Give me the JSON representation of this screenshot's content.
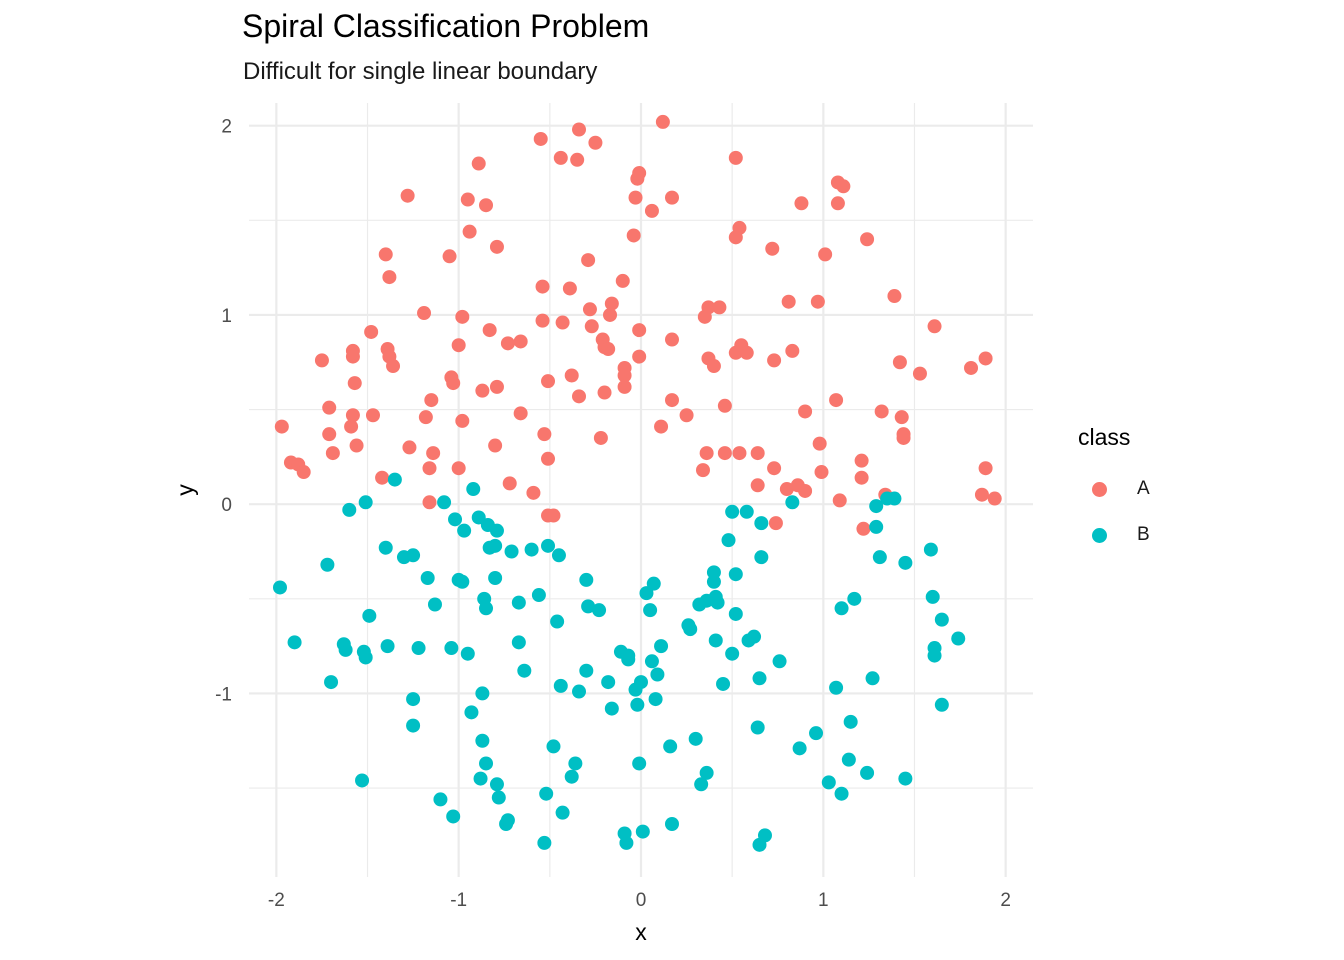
{
  "chart_data": {
    "type": "scatter",
    "title": "Spiral Classification Problem",
    "subtitle": "Difficult for single linear boundary",
    "xlabel": "x",
    "ylabel": "y",
    "xlim": [
      -2.15,
      2.15
    ],
    "ylim": [
      -1.97,
      2.12
    ],
    "x_ticks": [
      -2,
      -1,
      0,
      1,
      2
    ],
    "y_ticks": [
      -1,
      0,
      1,
      2
    ],
    "x_tick_labels": [
      "-2",
      "-1",
      "0",
      "1",
      "2"
    ],
    "y_tick_labels": [
      "-1",
      "0",
      "1",
      "2"
    ],
    "grid": true,
    "legend": {
      "title": "class",
      "position": "right"
    },
    "series": [
      {
        "name": "A",
        "color": "#F8766D",
        "points": [
          [
            -1.97,
            0.41
          ],
          [
            -1.92,
            0.22
          ],
          [
            -1.88,
            0.21
          ],
          [
            -1.85,
            0.17
          ],
          [
            -1.75,
            0.76
          ],
          [
            -1.71,
            0.51
          ],
          [
            -1.71,
            0.37
          ],
          [
            -1.69,
            0.27
          ],
          [
            -1.58,
            0.81
          ],
          [
            -1.58,
            0.78
          ],
          [
            -1.58,
            0.47
          ],
          [
            -1.59,
            0.41
          ],
          [
            -1.57,
            0.64
          ],
          [
            -1.56,
            0.31
          ],
          [
            -1.48,
            0.91
          ],
          [
            -1.47,
            0.47
          ],
          [
            -1.42,
            0.14
          ],
          [
            -1.4,
            1.32
          ],
          [
            -1.38,
            1.2
          ],
          [
            -1.39,
            0.82
          ],
          [
            -1.38,
            0.78
          ],
          [
            -1.36,
            0.73
          ],
          [
            -1.28,
            1.63
          ],
          [
            -1.27,
            0.3
          ],
          [
            -1.19,
            1.01
          ],
          [
            -1.18,
            0.46
          ],
          [
            -1.16,
            0.19
          ],
          [
            -1.15,
            0.55
          ],
          [
            -1.14,
            0.27
          ],
          [
            -1.16,
            0.01
          ],
          [
            -1.05,
            1.31
          ],
          [
            -1.04,
            0.67
          ],
          [
            -1.03,
            0.64
          ],
          [
            -1.0,
            0.84
          ],
          [
            -1.0,
            0.19
          ],
          [
            -0.98,
            0.99
          ],
          [
            -0.98,
            0.44
          ],
          [
            -0.95,
            1.61
          ],
          [
            -0.94,
            1.44
          ],
          [
            -0.89,
            1.8
          ],
          [
            -0.87,
            0.6
          ],
          [
            -0.85,
            1.58
          ],
          [
            -0.83,
            0.92
          ],
          [
            -0.79,
            1.36
          ],
          [
            -0.79,
            0.62
          ],
          [
            -0.8,
            0.31
          ],
          [
            -0.73,
            0.85
          ],
          [
            -0.72,
            0.11
          ],
          [
            -0.66,
            0.86
          ],
          [
            -0.66,
            0.48
          ],
          [
            -0.59,
            0.06
          ],
          [
            -0.55,
            1.93
          ],
          [
            -0.54,
            1.15
          ],
          [
            -0.54,
            0.97
          ],
          [
            -0.53,
            0.37
          ],
          [
            -0.51,
            0.65
          ],
          [
            -0.51,
            0.24
          ],
          [
            -0.51,
            -0.06
          ],
          [
            -0.48,
            -0.06
          ],
          [
            -0.44,
            1.83
          ],
          [
            -0.43,
            0.96
          ],
          [
            -0.39,
            1.14
          ],
          [
            -0.38,
            0.68
          ],
          [
            -0.35,
            1.82
          ],
          [
            -0.34,
            1.98
          ],
          [
            -0.34,
            0.57
          ],
          [
            -0.29,
            1.29
          ],
          [
            -0.28,
            1.03
          ],
          [
            -0.27,
            0.94
          ],
          [
            -0.25,
            1.91
          ],
          [
            -0.22,
            0.35
          ],
          [
            -0.21,
            0.87
          ],
          [
            -0.2,
            0.83
          ],
          [
            -0.2,
            0.59
          ],
          [
            -0.18,
            0.82
          ],
          [
            -0.17,
            1.0
          ],
          [
            -0.16,
            1.06
          ],
          [
            -0.1,
            1.18
          ],
          [
            -0.09,
            0.72
          ],
          [
            -0.09,
            0.68
          ],
          [
            -0.09,
            0.62
          ],
          [
            -0.04,
            1.42
          ],
          [
            -0.03,
            1.62
          ],
          [
            -0.02,
            1.72
          ],
          [
            -0.01,
            1.75
          ],
          [
            -0.01,
            0.92
          ],
          [
            -0.01,
            0.78
          ],
          [
            0.06,
            1.55
          ],
          [
            0.12,
            2.02
          ],
          [
            0.11,
            0.41
          ],
          [
            0.17,
            1.62
          ],
          [
            0.17,
            0.87
          ],
          [
            0.17,
            0.55
          ],
          [
            0.25,
            0.47
          ],
          [
            0.34,
            0.18
          ],
          [
            0.35,
            0.99
          ],
          [
            0.37,
            1.04
          ],
          [
            0.37,
            0.77
          ],
          [
            0.36,
            0.27
          ],
          [
            0.4,
            0.73
          ],
          [
            0.43,
            1.04
          ],
          [
            0.46,
            0.52
          ],
          [
            0.46,
            0.27
          ],
          [
            0.52,
            1.83
          ],
          [
            0.52,
            1.41
          ],
          [
            0.54,
            1.46
          ],
          [
            0.52,
            0.8
          ],
          [
            0.55,
            0.84
          ],
          [
            0.58,
            0.8
          ],
          [
            0.54,
            0.27
          ],
          [
            0.64,
            0.27
          ],
          [
            0.64,
            0.1
          ],
          [
            0.72,
            1.35
          ],
          [
            0.73,
            0.76
          ],
          [
            0.73,
            0.19
          ],
          [
            0.74,
            -0.1
          ],
          [
            0.81,
            1.07
          ],
          [
            0.8,
            0.08
          ],
          [
            0.83,
            0.81
          ],
          [
            0.86,
            0.1
          ],
          [
            0.88,
            1.59
          ],
          [
            0.9,
            0.49
          ],
          [
            0.9,
            0.07
          ],
          [
            0.97,
            1.07
          ],
          [
            0.98,
            0.32
          ],
          [
            0.99,
            0.17
          ],
          [
            1.01,
            1.32
          ],
          [
            1.08,
            1.7
          ],
          [
            1.08,
            1.59
          ],
          [
            1.07,
            0.55
          ],
          [
            1.09,
            0.02
          ],
          [
            1.11,
            1.68
          ],
          [
            1.21,
            0.23
          ],
          [
            1.21,
            0.14
          ],
          [
            1.22,
            -0.13
          ],
          [
            1.24,
            1.4
          ],
          [
            1.32,
            0.49
          ],
          [
            1.34,
            0.05
          ],
          [
            1.39,
            1.1
          ],
          [
            1.42,
            0.75
          ],
          [
            1.43,
            0.46
          ],
          [
            1.44,
            0.37
          ],
          [
            1.44,
            0.35
          ],
          [
            1.53,
            0.69
          ],
          [
            1.61,
            0.94
          ],
          [
            1.81,
            0.72
          ],
          [
            1.89,
            0.77
          ],
          [
            1.87,
            0.05
          ],
          [
            1.89,
            0.19
          ],
          [
            1.94,
            0.03
          ]
        ]
      },
      {
        "name": "B",
        "color": "#00BFC4",
        "points": [
          [
            -1.98,
            -0.44
          ],
          [
            -1.9,
            -0.73
          ],
          [
            -1.72,
            -0.32
          ],
          [
            -1.7,
            -0.94
          ],
          [
            -1.63,
            -0.74
          ],
          [
            -1.62,
            -0.77
          ],
          [
            -1.6,
            -0.03
          ],
          [
            -1.53,
            -1.46
          ],
          [
            -1.52,
            -0.78
          ],
          [
            -1.51,
            0.01
          ],
          [
            -1.51,
            -0.81
          ],
          [
            -1.49,
            -0.59
          ],
          [
            -1.4,
            -0.23
          ],
          [
            -1.39,
            -0.75
          ],
          [
            -1.35,
            0.13
          ],
          [
            -1.3,
            -0.28
          ],
          [
            -1.25,
            -0.27
          ],
          [
            -1.25,
            -1.03
          ],
          [
            -1.25,
            -1.17
          ],
          [
            -1.22,
            -0.76
          ],
          [
            -1.17,
            -0.39
          ],
          [
            -1.13,
            -0.53
          ],
          [
            -1.1,
            -1.56
          ],
          [
            -1.08,
            0.01
          ],
          [
            -1.04,
            -0.76
          ],
          [
            -1.03,
            -1.65
          ],
          [
            -1.02,
            -0.08
          ],
          [
            -1.0,
            -0.4
          ],
          [
            -0.98,
            -0.41
          ],
          [
            -0.97,
            -0.14
          ],
          [
            -0.95,
            -0.79
          ],
          [
            -0.93,
            -1.1
          ],
          [
            -0.92,
            0.08
          ],
          [
            -0.89,
            -0.07
          ],
          [
            -0.88,
            -1.45
          ],
          [
            -0.87,
            -1.25
          ],
          [
            -0.87,
            -1.0
          ],
          [
            -0.86,
            -0.5
          ],
          [
            -0.85,
            -0.55
          ],
          [
            -0.85,
            -1.37
          ],
          [
            -0.84,
            -0.11
          ],
          [
            -0.83,
            -0.23
          ],
          [
            -0.8,
            -0.22
          ],
          [
            -0.79,
            -0.14
          ],
          [
            -0.8,
            -0.39
          ],
          [
            -0.79,
            -1.48
          ],
          [
            -0.78,
            -1.55
          ],
          [
            -0.74,
            -1.69
          ],
          [
            -0.73,
            -1.67
          ],
          [
            -0.71,
            -0.25
          ],
          [
            -0.67,
            -0.73
          ],
          [
            -0.67,
            -0.52
          ],
          [
            -0.64,
            -0.88
          ],
          [
            -0.6,
            -0.24
          ],
          [
            -0.56,
            -0.48
          ],
          [
            -0.53,
            -1.79
          ],
          [
            -0.52,
            -1.53
          ],
          [
            -0.51,
            -0.22
          ],
          [
            -0.48,
            -1.28
          ],
          [
            -0.46,
            -0.62
          ],
          [
            -0.45,
            -0.27
          ],
          [
            -0.44,
            -0.96
          ],
          [
            -0.43,
            -1.63
          ],
          [
            -0.38,
            -1.44
          ],
          [
            -0.36,
            -1.37
          ],
          [
            -0.34,
            -0.99
          ],
          [
            -0.3,
            -0.88
          ],
          [
            -0.3,
            -0.4
          ],
          [
            -0.29,
            -0.54
          ],
          [
            -0.23,
            -0.56
          ],
          [
            -0.18,
            -0.94
          ],
          [
            -0.16,
            -1.08
          ],
          [
            -0.11,
            -0.78
          ],
          [
            -0.09,
            -1.74
          ],
          [
            -0.08,
            -1.79
          ],
          [
            -0.07,
            -0.8
          ],
          [
            -0.07,
            -0.82
          ],
          [
            -0.03,
            -0.98
          ],
          [
            -0.02,
            -1.06
          ],
          [
            -0.01,
            -1.37
          ],
          [
            0.0,
            -0.94
          ],
          [
            0.01,
            -1.73
          ],
          [
            0.03,
            -0.47
          ],
          [
            0.05,
            -0.56
          ],
          [
            0.06,
            -0.83
          ],
          [
            0.07,
            -0.42
          ],
          [
            0.08,
            -1.03
          ],
          [
            0.09,
            -0.9
          ],
          [
            0.11,
            -0.75
          ],
          [
            0.16,
            -1.28
          ],
          [
            0.17,
            -1.69
          ],
          [
            0.26,
            -0.64
          ],
          [
            0.27,
            -0.66
          ],
          [
            0.3,
            -1.24
          ],
          [
            0.32,
            -0.53
          ],
          [
            0.33,
            -1.48
          ],
          [
            0.36,
            -1.42
          ],
          [
            0.36,
            -0.51
          ],
          [
            0.4,
            -0.36
          ],
          [
            0.4,
            -0.41
          ],
          [
            0.41,
            -0.49
          ],
          [
            0.41,
            -0.72
          ],
          [
            0.42,
            -0.52
          ],
          [
            0.45,
            -0.95
          ],
          [
            0.48,
            -0.19
          ],
          [
            0.5,
            -0.04
          ],
          [
            0.5,
            -0.79
          ],
          [
            0.52,
            -0.37
          ],
          [
            0.52,
            -0.58
          ],
          [
            0.58,
            -0.04
          ],
          [
            0.59,
            -0.72
          ],
          [
            0.62,
            -0.7
          ],
          [
            0.64,
            -1.18
          ],
          [
            0.65,
            -0.92
          ],
          [
            0.65,
            -1.8
          ],
          [
            0.66,
            -0.28
          ],
          [
            0.66,
            -0.1
          ],
          [
            0.68,
            -1.75
          ],
          [
            0.76,
            -0.83
          ],
          [
            0.83,
            0.01
          ],
          [
            0.87,
            -1.29
          ],
          [
            0.96,
            -1.21
          ],
          [
            1.03,
            -1.47
          ],
          [
            1.07,
            -0.97
          ],
          [
            1.1,
            -0.55
          ],
          [
            1.1,
            -1.53
          ],
          [
            1.14,
            -1.35
          ],
          [
            1.15,
            -1.15
          ],
          [
            1.17,
            -0.5
          ],
          [
            1.24,
            -1.42
          ],
          [
            1.27,
            -0.92
          ],
          [
            1.29,
            -0.12
          ],
          [
            1.29,
            -0.01
          ],
          [
            1.31,
            -0.28
          ],
          [
            1.35,
            0.03
          ],
          [
            1.39,
            0.03
          ],
          [
            1.45,
            -0.31
          ],
          [
            1.45,
            -1.45
          ],
          [
            1.59,
            -0.24
          ],
          [
            1.6,
            -0.49
          ],
          [
            1.61,
            -0.76
          ],
          [
            1.61,
            -0.8
          ],
          [
            1.65,
            -0.61
          ],
          [
            1.65,
            -1.06
          ],
          [
            1.74,
            -0.71
          ]
        ]
      }
    ]
  }
}
